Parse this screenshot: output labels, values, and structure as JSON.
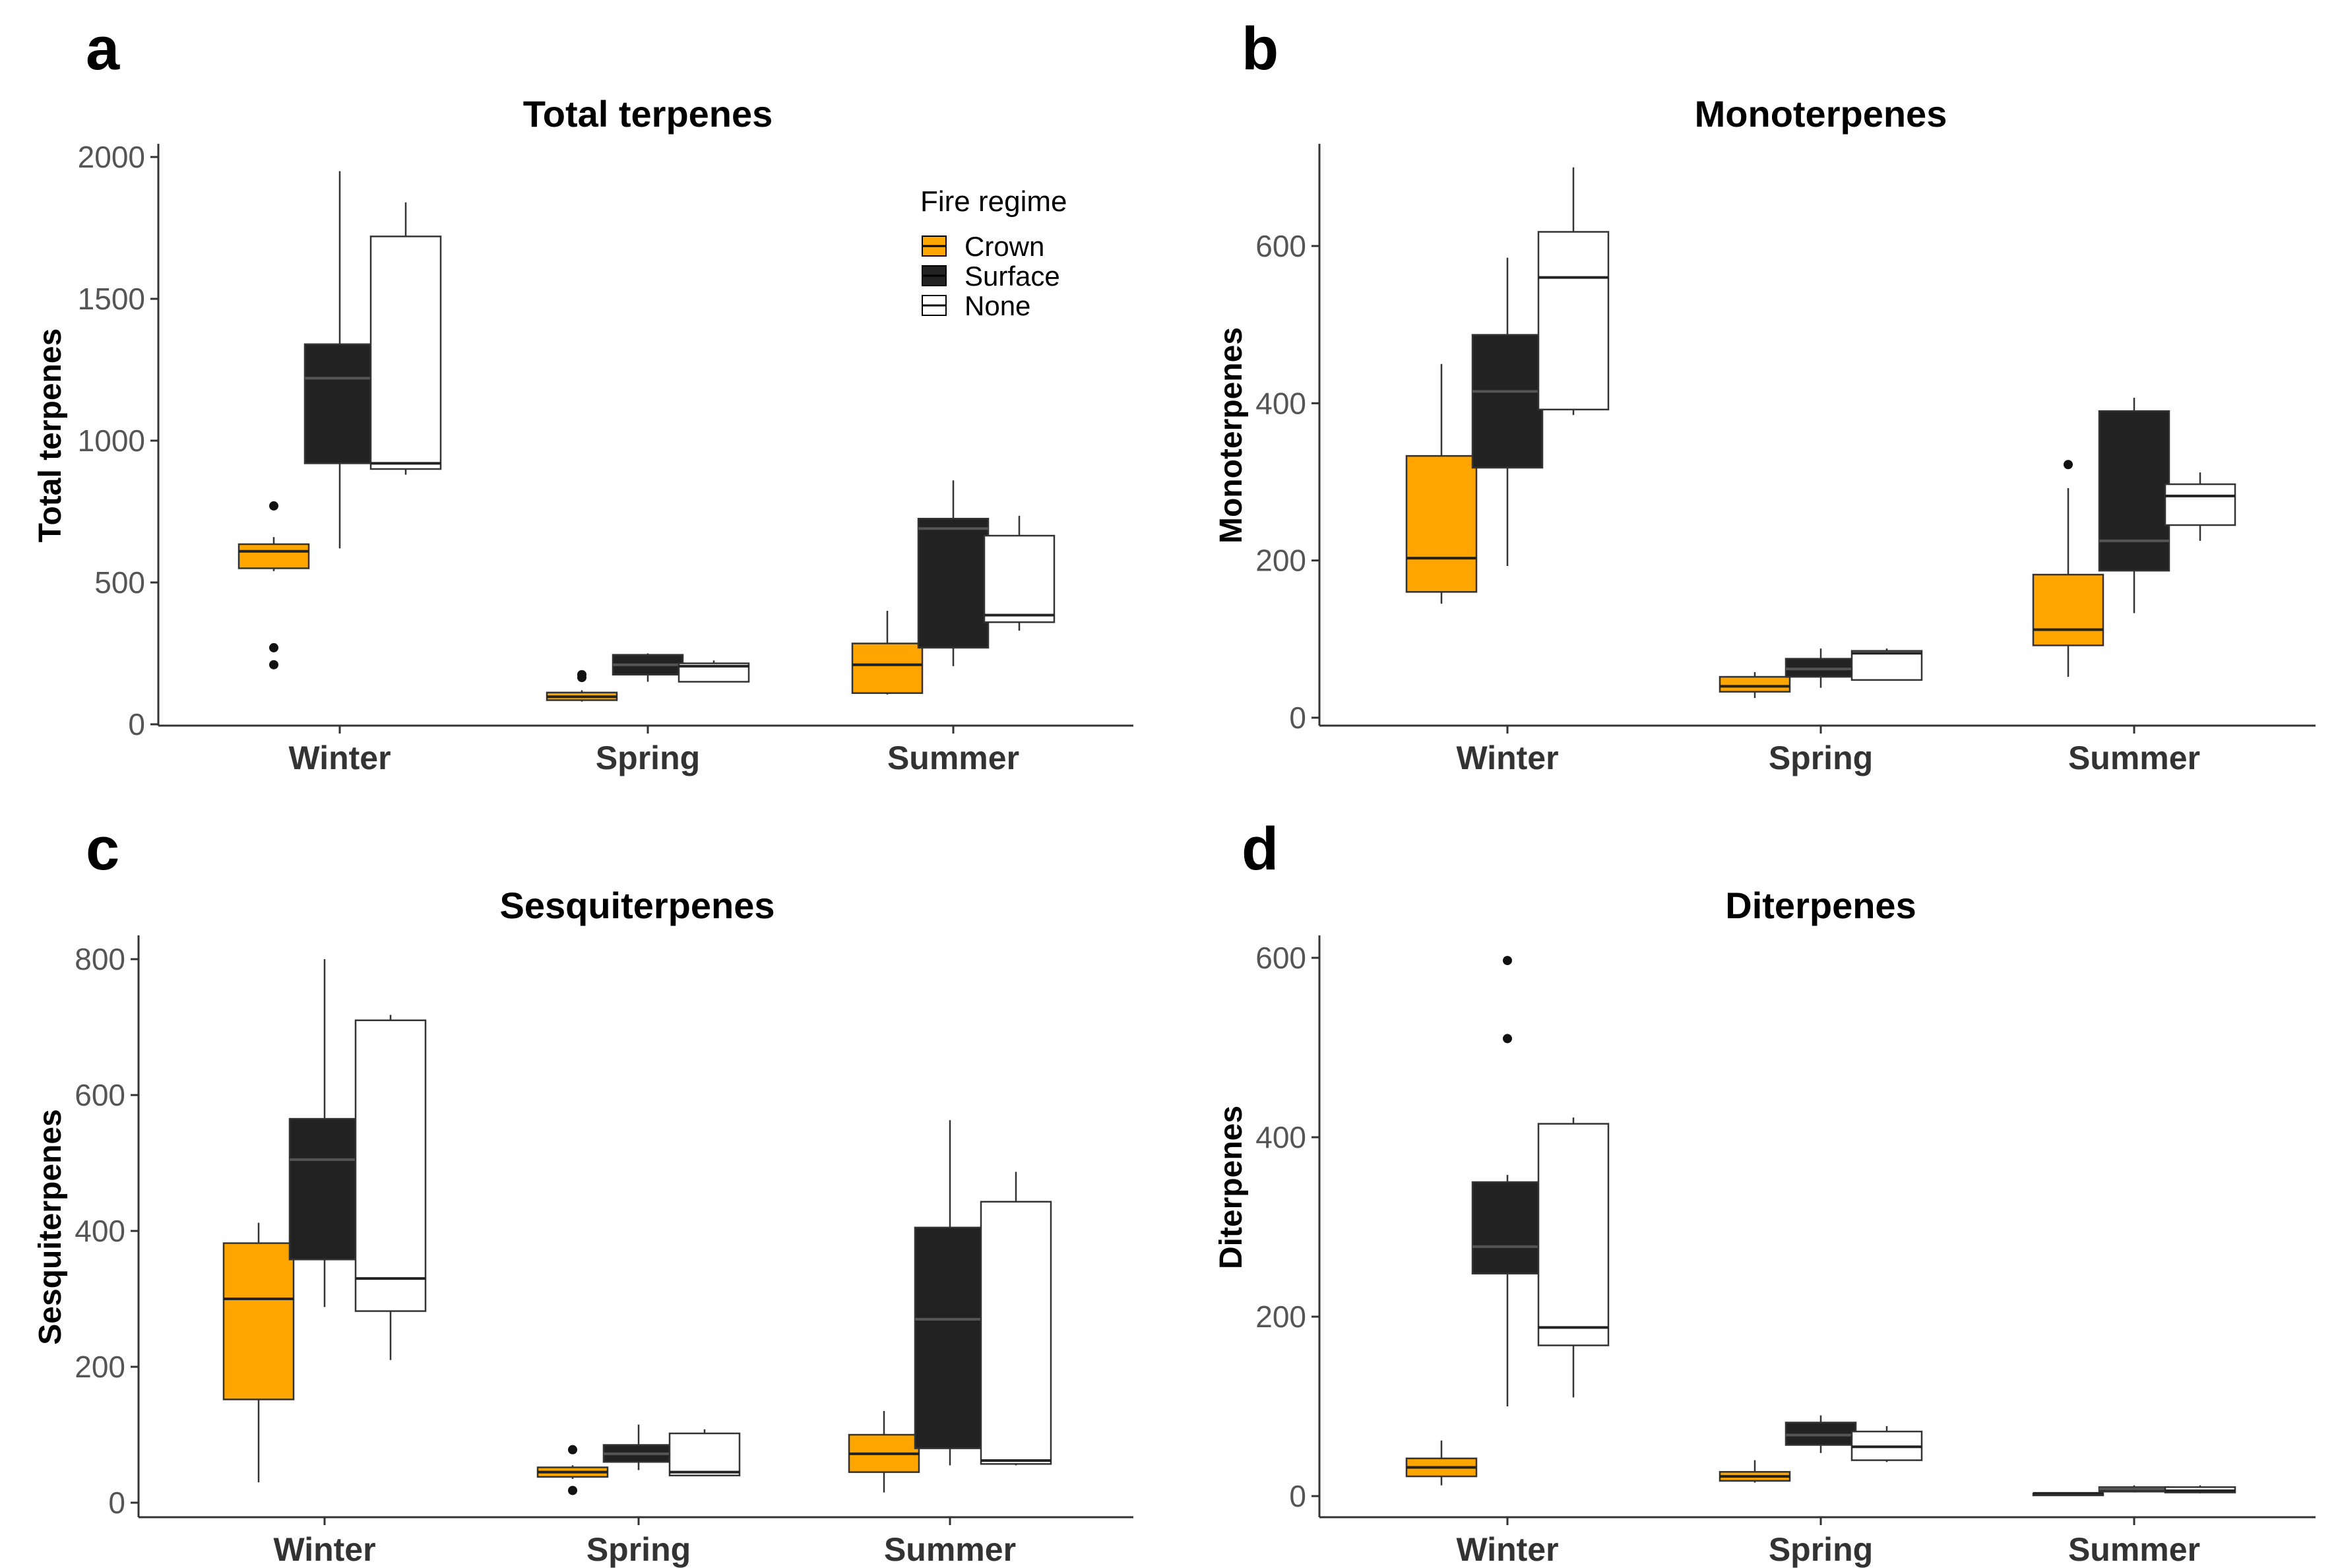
{
  "colors": {
    "Crown": "#FFA500",
    "Surface": "#222222",
    "None": "#ffffff",
    "stroke": "#000000",
    "axis": "#333333"
  },
  "legend": {
    "title": "Fire regime",
    "entries": [
      "Crown",
      "Surface",
      "None"
    ],
    "placement": "top-right of panel a"
  },
  "chart_data": [
    {
      "panel": "a",
      "type": "box",
      "title": "Total terpenes",
      "ylabel": "Total terpenes",
      "xlabel": "",
      "ylim": [
        0,
        2000
      ],
      "yticks": [
        0,
        500,
        1000,
        1500,
        2000
      ],
      "categories": [
        "Winter",
        "Spring",
        "Summer"
      ],
      "series": [
        {
          "name": "Crown",
          "boxes": [
            {
              "min": 540,
              "q1": 550,
              "median": 610,
              "q3": 635,
              "max": 660,
              "outliers": [
                770,
                270,
                210
              ]
            },
            {
              "min": 80,
              "q1": 85,
              "median": 97,
              "q3": 112,
              "max": 120,
              "outliers": [
                165,
                175
              ]
            },
            {
              "min": 105,
              "q1": 110,
              "median": 210,
              "q3": 285,
              "max": 400,
              "outliers": []
            }
          ]
        },
        {
          "name": "Surface",
          "boxes": [
            {
              "min": 620,
              "q1": 920,
              "median": 1220,
              "q3": 1340,
              "max": 1950,
              "outliers": []
            },
            {
              "min": 150,
              "q1": 175,
              "median": 210,
              "q3": 245,
              "max": 250,
              "outliers": []
            },
            {
              "min": 205,
              "q1": 270,
              "median": 690,
              "q3": 725,
              "max": 860,
              "outliers": []
            }
          ]
        },
        {
          "name": "None",
          "boxes": [
            {
              "min": 880,
              "q1": 900,
              "median": 920,
              "q3": 1720,
              "max": 1840,
              "outliers": []
            },
            {
              "min": 150,
              "q1": 150,
              "median": 205,
              "q3": 215,
              "max": 225,
              "outliers": []
            },
            {
              "min": 330,
              "q1": 360,
              "median": 385,
              "q3": 665,
              "max": 735,
              "outliers": []
            }
          ]
        }
      ]
    },
    {
      "panel": "b",
      "type": "box",
      "title": "Monoterpenes",
      "ylabel": "Monoterpenes",
      "xlabel": "",
      "ylim": [
        0,
        730
      ],
      "yticks": [
        0,
        200,
        400,
        600
      ],
      "categories": [
        "Winter",
        "Spring",
        "Summer"
      ],
      "series": [
        {
          "name": "Crown",
          "boxes": [
            {
              "min": 145,
              "q1": 160,
              "median": 203,
              "q3": 333,
              "max": 450,
              "outliers": []
            },
            {
              "min": 25,
              "q1": 33,
              "median": 40,
              "q3": 52,
              "max": 58,
              "outliers": []
            },
            {
              "min": 52,
              "q1": 92,
              "median": 112,
              "q3": 182,
              "max": 292,
              "outliers": [
                322
              ]
            }
          ]
        },
        {
          "name": "Surface",
          "boxes": [
            {
              "min": 193,
              "q1": 318,
              "median": 415,
              "q3": 487,
              "max": 585,
              "outliers": []
            },
            {
              "min": 38,
              "q1": 52,
              "median": 62,
              "q3": 75,
              "max": 88,
              "outliers": []
            },
            {
              "min": 133,
              "q1": 187,
              "median": 225,
              "q3": 390,
              "max": 407,
              "outliers": []
            }
          ]
        },
        {
          "name": "None",
          "boxes": [
            {
              "min": 385,
              "q1": 392,
              "median": 560,
              "q3": 618,
              "max": 700,
              "outliers": []
            },
            {
              "min": 48,
              "q1": 48,
              "median": 82,
              "q3": 85,
              "max": 88,
              "outliers": []
            },
            {
              "min": 225,
              "q1": 245,
              "median": 282,
              "q3": 297,
              "max": 312,
              "outliers": []
            }
          ]
        }
      ]
    },
    {
      "panel": "c",
      "type": "box",
      "title": "Sesquiterpenes",
      "ylabel": "Sesquiterpenes",
      "xlabel": "",
      "ylim": [
        0,
        835
      ],
      "yticks": [
        0,
        200,
        400,
        600,
        800
      ],
      "categories": [
        "Winter",
        "Spring",
        "Summer"
      ],
      "series": [
        {
          "name": "Crown",
          "boxes": [
            {
              "min": 30,
              "q1": 152,
              "median": 300,
              "q3": 382,
              "max": 412,
              "outliers": []
            },
            {
              "min": 35,
              "q1": 38,
              "median": 45,
              "q3": 52,
              "max": 55,
              "outliers": [
                78,
                18
              ]
            },
            {
              "min": 15,
              "q1": 45,
              "median": 72,
              "q3": 100,
              "max": 135,
              "outliers": []
            }
          ]
        },
        {
          "name": "Surface",
          "boxes": [
            {
              "min": 288,
              "q1": 358,
              "median": 505,
              "q3": 565,
              "max": 800,
              "outliers": []
            },
            {
              "min": 48,
              "q1": 60,
              "median": 72,
              "q3": 85,
              "max": 115,
              "outliers": []
            },
            {
              "min": 55,
              "q1": 80,
              "median": 270,
              "q3": 405,
              "max": 563,
              "outliers": []
            }
          ]
        },
        {
          "name": "None",
          "boxes": [
            {
              "min": 210,
              "q1": 282,
              "median": 330,
              "q3": 710,
              "max": 718,
              "outliers": []
            },
            {
              "min": 40,
              "q1": 40,
              "median": 45,
              "q3": 102,
              "max": 108,
              "outliers": []
            },
            {
              "min": 55,
              "q1": 57,
              "median": 62,
              "q3": 443,
              "max": 487,
              "outliers": []
            }
          ]
        }
      ]
    },
    {
      "panel": "d",
      "type": "box",
      "title": "Diterpenes",
      "ylabel": "Diterpenes",
      "xlabel": "",
      "ylim": [
        0,
        625
      ],
      "yticks": [
        0,
        200,
        400,
        600
      ],
      "categories": [
        "Winter",
        "Spring",
        "Summer"
      ],
      "series": [
        {
          "name": "Crown",
          "boxes": [
            {
              "min": 12,
              "q1": 22,
              "median": 32,
              "q3": 42,
              "max": 62,
              "outliers": []
            },
            {
              "min": 15,
              "q1": 17,
              "median": 22,
              "q3": 27,
              "max": 40,
              "outliers": []
            },
            {
              "min": 2,
              "q1": 2,
              "median": 3,
              "q3": 3,
              "max": 4,
              "outliers": []
            }
          ]
        },
        {
          "name": "Surface",
          "boxes": [
            {
              "min": 100,
              "q1": 248,
              "median": 278,
              "q3": 350,
              "max": 358,
              "outliers": [
                597,
                510
              ]
            },
            {
              "min": 48,
              "q1": 57,
              "median": 68,
              "q3": 82,
              "max": 90,
              "outliers": []
            },
            {
              "min": 4,
              "q1": 5,
              "median": 8,
              "q3": 10,
              "max": 12,
              "outliers": []
            }
          ]
        },
        {
          "name": "None",
          "boxes": [
            {
              "min": 110,
              "q1": 168,
              "median": 188,
              "q3": 415,
              "max": 422,
              "outliers": []
            },
            {
              "min": 38,
              "q1": 40,
              "median": 55,
              "q3": 72,
              "max": 78,
              "outliers": []
            },
            {
              "min": 3,
              "q1": 4,
              "median": 6,
              "q3": 10,
              "max": 12,
              "outliers": []
            }
          ]
        }
      ]
    }
  ]
}
